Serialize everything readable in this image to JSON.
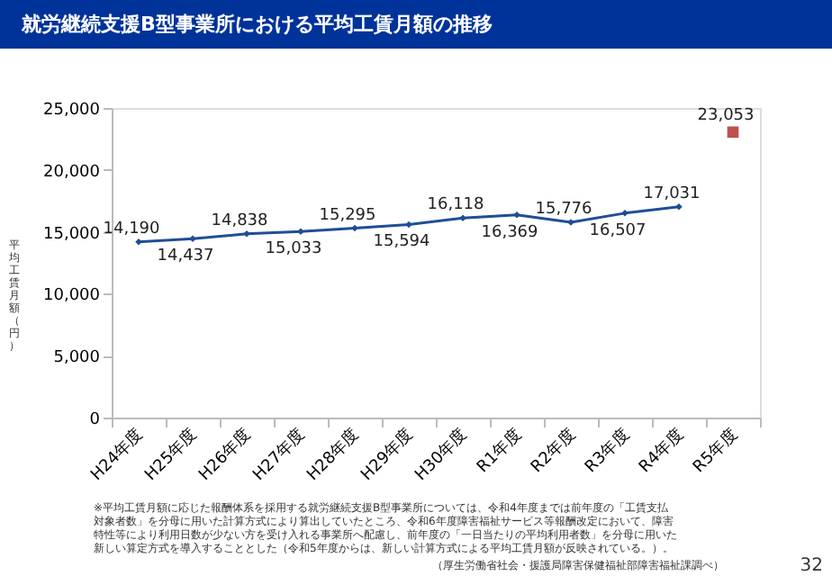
{
  "chart_data": {
    "type": "line",
    "title": "就労継続支援B型事業所における平均工賃月額の推移",
    "ylabel": "平均工賃月額（円）",
    "categories": [
      "H24年度",
      "H25年度",
      "H26年度",
      "H27年度",
      "H28年度",
      "H29年度",
      "H30年度",
      "R1年度",
      "R2年度",
      "R3年度",
      "R4年度",
      "R5年度"
    ],
    "series": [
      {
        "color": "#1f4e96",
        "marker": "diamond",
        "line_style": "solid",
        "values": [
          14190,
          14437,
          14838,
          15033,
          15295,
          15594,
          16118,
          16369,
          15776,
          16507,
          17031,
          null
        ],
        "value_labels": [
          "14,190",
          "14,437",
          "14,838",
          "15,033",
          "15,295",
          "15,594",
          "16,118",
          "16,369",
          "15,776",
          "16,507",
          "17,031",
          null
        ]
      },
      {
        "type": "scatter",
        "color": "#c0504d",
        "marker": "square",
        "values": [
          null,
          null,
          null,
          null,
          null,
          null,
          null,
          null,
          null,
          null,
          null,
          23053
        ],
        "value_labels": [
          null,
          null,
          null,
          null,
          null,
          null,
          null,
          null,
          null,
          null,
          null,
          "23,053"
        ]
      }
    ],
    "ylim": [
      0,
      25000
    ],
    "yticks": [
      0,
      {
        "value": 5000,
        "label": "5,000"
      },
      {
        "value": 10000,
        "label": "10,000"
      },
      {
        "value": 15000,
        "label": "15,000"
      },
      {
        "value": 20000,
        "label": "20,000"
      },
      {
        "value": 25000,
        "label": "25,000"
      }
    ],
    "grid": false,
    "annotations": [
      "※平均工賃月額に応じた報酬体系を採用する就労継続支援B型事業所については、令和4年度までは前年度の「工賃支払対象者数」を分母に用いた計算方式により算出していたところ、令和6年度障害福祉サービス等報酬改定において、障害特性等により利用日数が少ない方を受け入れる事業所へ配慮し、前年度の「一日当たりの平均利用者数」を分母に用いた新しい算定方式を導入することとした（令和5年度からは、新しい計算方式による平均工賃月額が反映されている。）。",
      "（厚生労働省社会・援護局障害保健福祉部障害福祉課調べ）",
      "32"
    ]
  }
}
